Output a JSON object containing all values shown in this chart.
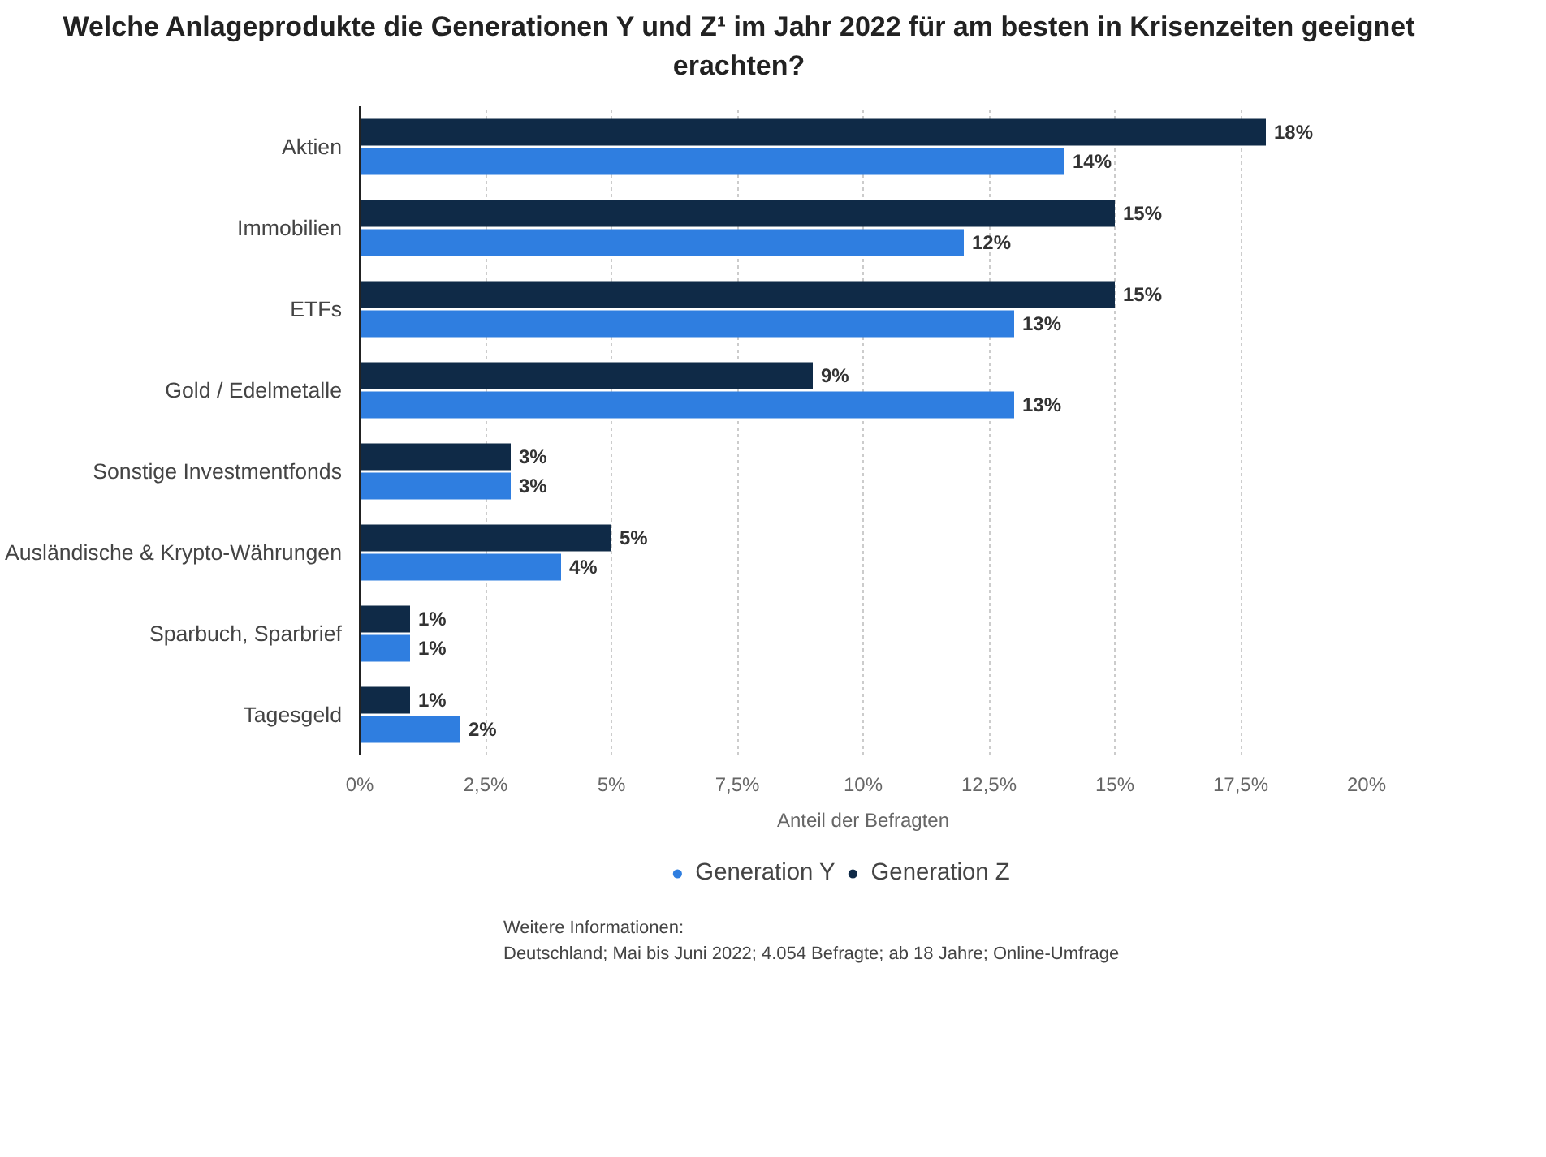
{
  "chart_data": {
    "type": "bar",
    "orientation": "horizontal",
    "title": "Welche Anlageprodukte die Generationen Y und Z¹ im Jahr 2022 für am besten in Krisenzeiten geeignet erachten?",
    "categories": [
      "Aktien",
      "Immobilien",
      "ETFs",
      "Gold / Edelmetalle",
      "Sonstige Investmentfonds",
      "Ausländische & Krypto-Währungen",
      "Sparbuch, Sparbrief",
      "Tagesgeld"
    ],
    "series": [
      {
        "name": "Generation Y",
        "color": "#2f7ee0",
        "values": [
          14,
          12,
          13,
          13,
          3,
          4,
          1,
          2
        ],
        "value_labels": [
          "14%",
          "12%",
          "13%",
          "13%",
          "3%",
          "4%",
          "1%",
          "2%"
        ]
      },
      {
        "name": "Generation Z",
        "color": "#0f2a47",
        "values": [
          18,
          15,
          15,
          9,
          3,
          5,
          1,
          1
        ],
        "value_labels": [
          "18%",
          "15%",
          "15%",
          "9%",
          "3%",
          "5%",
          "1%",
          "1%"
        ]
      }
    ],
    "xlim": [
      0,
      20
    ],
    "xticks": [
      {
        "value": 0,
        "label": "0%"
      },
      {
        "value": 2.5,
        "label": "2,5%"
      },
      {
        "value": 5,
        "label": "5%"
      },
      {
        "value": 7.5,
        "label": "7,5%"
      },
      {
        "value": 10,
        "label": "10%"
      },
      {
        "value": 12.5,
        "label": "12,5%"
      },
      {
        "value": 15,
        "label": "15%"
      },
      {
        "value": 17.5,
        "label": "17,5%"
      },
      {
        "value": 20,
        "label": "20%"
      }
    ],
    "xlabel": "Anteil der Befragten",
    "grid": "x",
    "legend": "bottom",
    "annotations": [
      "Weitere Informationen:",
      "Deutschland; Mai bis Juni 2022; 4.054 Befragte; ab 18 Jahre; Online-Umfrage"
    ]
  }
}
